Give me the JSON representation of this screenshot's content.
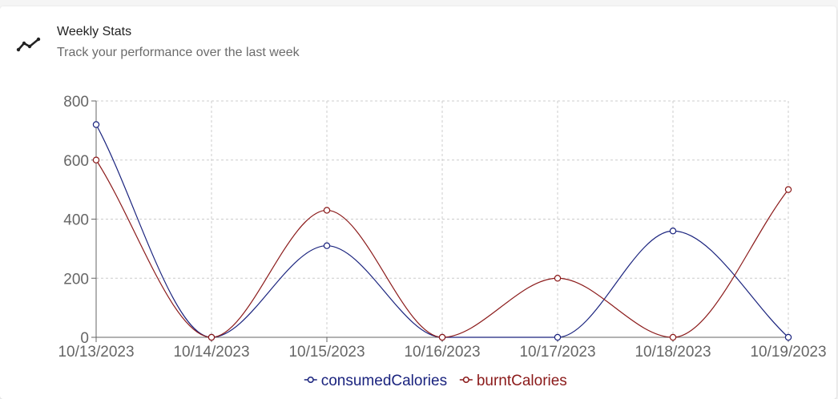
{
  "header": {
    "title": "Weekly Stats",
    "subtitle": "Track your performance over the last week",
    "icon": "line-chart-icon"
  },
  "chart_data": {
    "type": "line",
    "x": [
      "10/13/2023",
      "10/14/2023",
      "10/15/2023",
      "10/16/2023",
      "10/17/2023",
      "10/18/2023",
      "10/19/2023"
    ],
    "series": [
      {
        "name": "consumedCalories",
        "color": "#1a237e",
        "values": [
          720,
          0,
          310,
          0,
          0,
          360,
          0
        ]
      },
      {
        "name": "burntCalories",
        "color": "#8b1a1a",
        "values": [
          600,
          0,
          430,
          0,
          200,
          0,
          500
        ]
      }
    ],
    "y_ticks": [
      0,
      200,
      400,
      600,
      800
    ],
    "ylim": [
      0,
      800
    ],
    "grid": true,
    "legend_position": "bottom-center",
    "axis_color": "#666666",
    "grid_color": "#cccccc"
  }
}
